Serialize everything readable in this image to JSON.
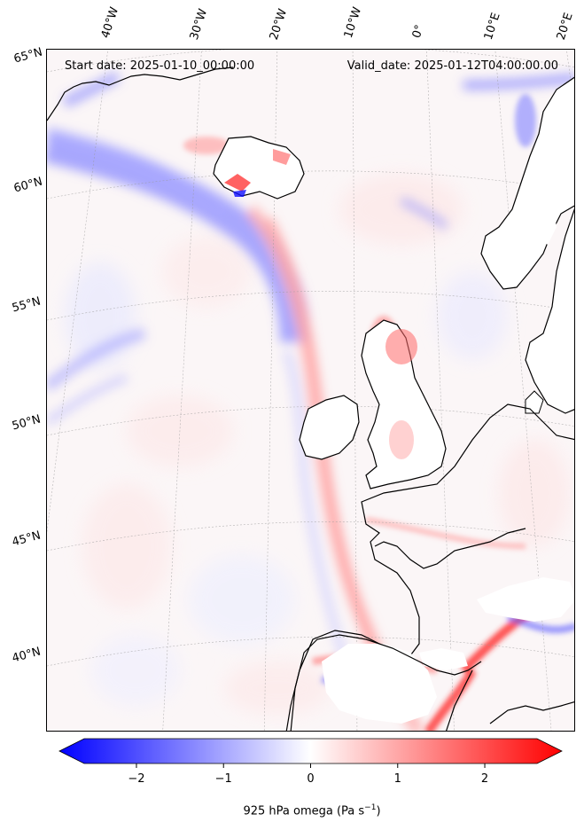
{
  "header": {
    "start_date": "Start date: 2025-01-10_00:00:00",
    "valid_date": "Valid_date: 2025-01-12T04:00:00.00"
  },
  "lon_labels": [
    "40°W",
    "30°W",
    "20°W",
    "10°W",
    "0°",
    "10°E",
    "20°E"
  ],
  "lat_labels": [
    "65°N",
    "60°N",
    "55°N",
    "50°N",
    "45°N",
    "40°N"
  ],
  "colorbar": {
    "ticks": [
      "−2",
      "−1",
      "0",
      "1",
      "2"
    ],
    "range": [
      -2.6,
      2.6
    ],
    "extend": "both",
    "colors": {
      "min": "#0000ff",
      "mid": "#ffffff",
      "max": "#ff0000"
    },
    "label_text": "925 hPa omega (Pa s",
    "label_exp": "−1",
    "label_close": ")"
  },
  "colors": {
    "coastline": "#000000",
    "gridline": "#9a9a9a",
    "land_mask": "#ffffff"
  }
}
